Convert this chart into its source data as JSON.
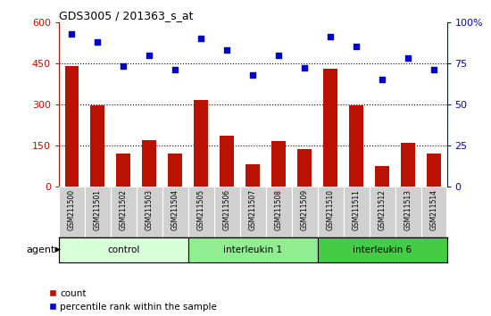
{
  "title": "GDS3005 / 201363_s_at",
  "samples": [
    "GSM211500",
    "GSM211501",
    "GSM211502",
    "GSM211503",
    "GSM211504",
    "GSM211505",
    "GSM211506",
    "GSM211507",
    "GSM211508",
    "GSM211509",
    "GSM211510",
    "GSM211511",
    "GSM211512",
    "GSM211513",
    "GSM211514"
  ],
  "counts": [
    440,
    295,
    120,
    170,
    120,
    315,
    185,
    80,
    165,
    135,
    430,
    295,
    75,
    160,
    120
  ],
  "percentiles": [
    93,
    88,
    73,
    80,
    71,
    90,
    83,
    68,
    80,
    72,
    91,
    85,
    65,
    78,
    71
  ],
  "groups": [
    {
      "label": "control",
      "start": 0,
      "end": 5,
      "color": "#d8ffd8"
    },
    {
      "label": "interleukin 1",
      "start": 5,
      "end": 10,
      "color": "#90ee90"
    },
    {
      "label": "interleukin 6",
      "start": 10,
      "end": 15,
      "color": "#44cc44"
    }
  ],
  "bar_color": "#bb1100",
  "dot_color": "#0000cc",
  "left_ylim": [
    0,
    600
  ],
  "right_ylim": [
    0,
    100
  ],
  "left_yticks": [
    0,
    150,
    300,
    450,
    600
  ],
  "right_yticks": [
    0,
    25,
    50,
    75,
    100
  ],
  "left_yticklabels": [
    "0",
    "150",
    "300",
    "450",
    "600"
  ],
  "right_yticklabels": [
    "0",
    "25",
    "50",
    "75",
    "100%"
  ],
  "hgrid_values": [
    150,
    300,
    450
  ],
  "plot_bg": "#ffffff",
  "xtick_bg": "#d0d0d0",
  "xlabel_agent": "agent",
  "figsize": [
    5.5,
    3.54
  ],
  "dpi": 100
}
